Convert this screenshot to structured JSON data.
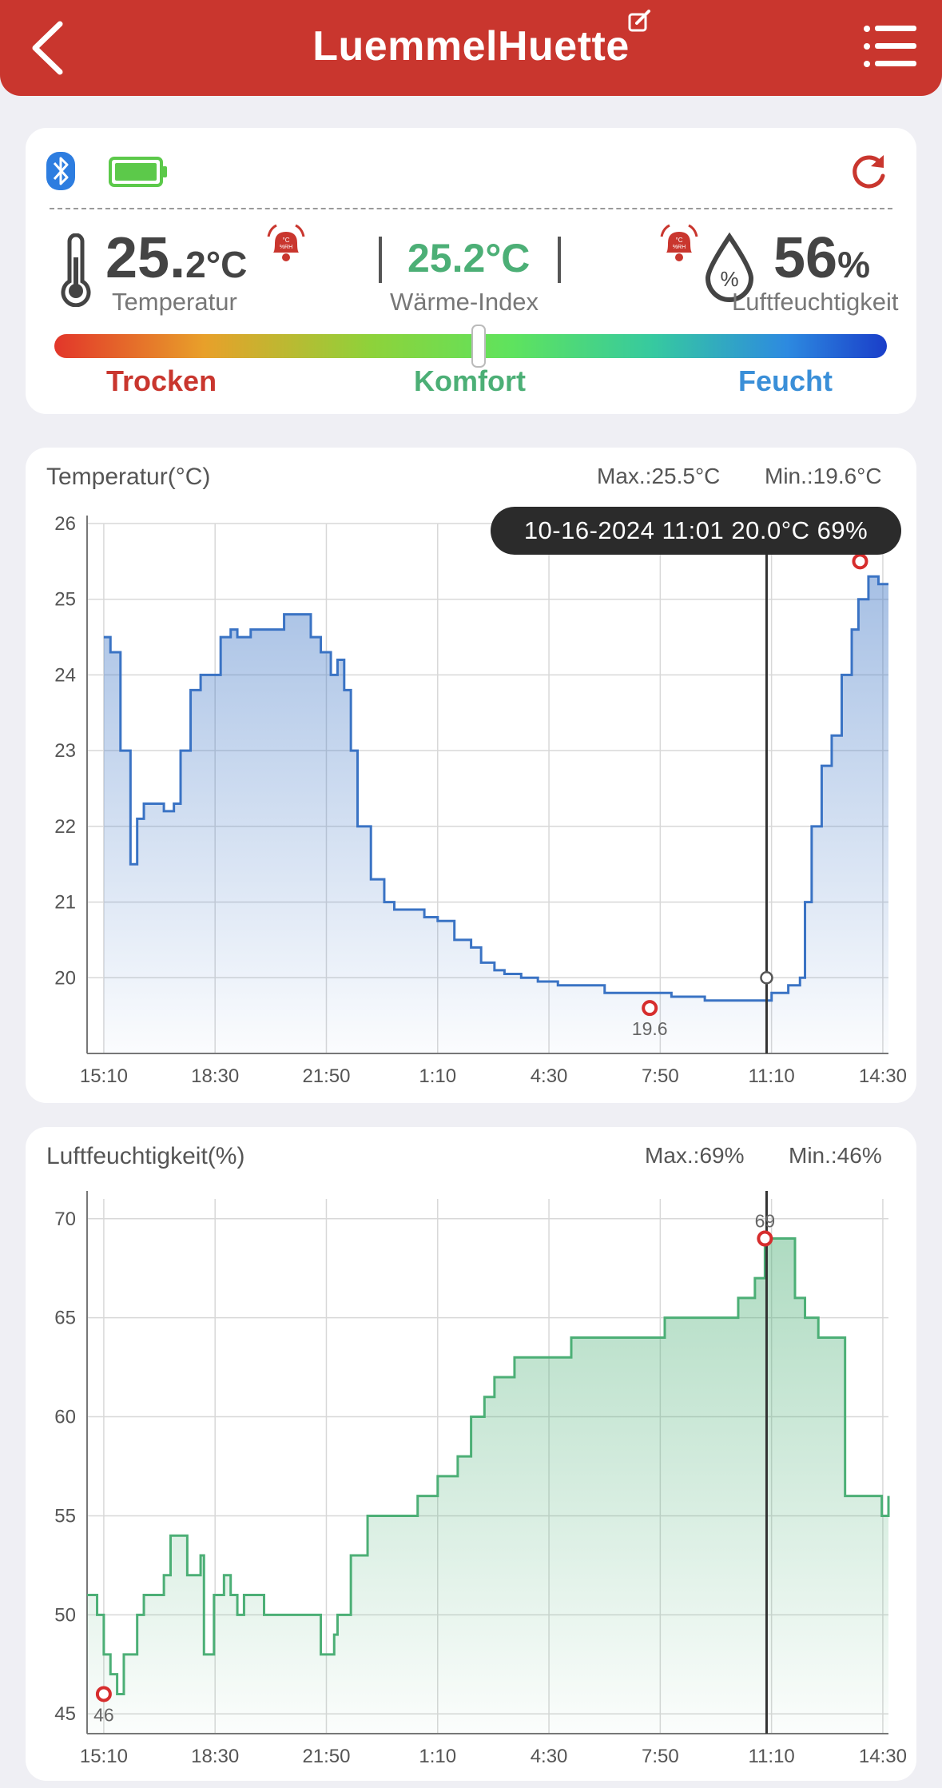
{
  "header": {
    "title": "LuemmelHuette",
    "colors": {
      "bar": "#c9362e"
    },
    "icons": {
      "back": "chevron-left-icon",
      "edit": "edit-icon",
      "menu": "list-menu-icon"
    }
  },
  "status": {
    "icons": {
      "bluetooth": "bluetooth-icon",
      "battery": "battery-full-icon",
      "refresh": "refresh-icon",
      "alarm": "alarm-bell-icon",
      "thermometer": "thermometer-icon",
      "humidity": "droplet-percent-icon"
    },
    "temperature": {
      "whole": "25.",
      "decimal": "2",
      "unit": "°C",
      "label": "Temperatur"
    },
    "heat_index": {
      "value": "25.2°C",
      "label": "Wärme-Index"
    },
    "humidity": {
      "value": "56",
      "unit": "%",
      "label": "Luftfeuchtigkeit"
    },
    "alarm_badge": "°C\n%RH",
    "comfort_level": 0.51,
    "zones": {
      "dry": "Trocken",
      "comfort": "Komfort",
      "wet": "Feucht"
    },
    "colors": {
      "dry": "#c9362e",
      "comfort": "#4caf76",
      "wet": "#3a8fd8",
      "battery": "#5cc94a",
      "bluetooth": "#2d7de0"
    }
  },
  "temperature_chart": {
    "title": "Temperatur(°C)",
    "max_label": "Max.:25.5°C",
    "min_label": "Min.:19.6°C",
    "tooltip": "10-16-2024 11:01 20.0°C 69%",
    "min_point_label": "19.6"
  },
  "humidity_chart": {
    "title": "Luftfeuchtigkeit(%)",
    "max_label": "Max.:69%",
    "min_label": "Min.:46%",
    "max_point_label": "69",
    "min_point_label": "46"
  },
  "chart_data": [
    {
      "type": "area",
      "title": "Temperatur(°C)",
      "color": "#3a73c4",
      "ylim": [
        19,
        26
      ],
      "yticks": [
        20,
        21,
        22,
        23,
        24,
        25,
        26
      ],
      "xticks": [
        "15:10",
        "18:30",
        "21:50",
        "1:10",
        "4:30",
        "7:50",
        "11:10",
        "14:30"
      ],
      "x_unit": "hours since 15:10",
      "xlim": [
        -0.5,
        23.5
      ],
      "x": [
        0,
        0.2,
        0.5,
        0.8,
        1.0,
        1.2,
        1.5,
        1.8,
        2.1,
        2.3,
        2.6,
        2.9,
        3.2,
        3.5,
        3.8,
        4.0,
        4.4,
        5.0,
        5.4,
        5.9,
        6.2,
        6.5,
        6.8,
        7.0,
        7.2,
        7.4,
        7.6,
        8.0,
        8.4,
        8.7,
        9.0,
        9.6,
        10.0,
        10.5,
        11.0,
        11.3,
        11.7,
        12.0,
        12.5,
        13.0,
        13.6,
        14.4,
        15.0,
        16.0,
        17.0,
        18.0,
        19.0,
        20.0,
        20.5,
        20.85,
        21.0,
        21.2,
        21.5,
        21.8,
        22.1,
        22.4,
        22.6,
        22.9,
        23.2,
        23.5
      ],
      "values": [
        24.5,
        24.3,
        23.0,
        21.5,
        22.1,
        22.3,
        22.3,
        22.2,
        22.3,
        23.0,
        23.8,
        24.0,
        24.0,
        24.5,
        24.6,
        24.5,
        24.6,
        24.6,
        24.8,
        24.8,
        24.5,
        24.3,
        24.0,
        24.2,
        23.8,
        23.0,
        22.0,
        21.3,
        21.0,
        20.9,
        20.9,
        20.8,
        20.75,
        20.5,
        20.4,
        20.2,
        20.1,
        20.05,
        20.0,
        19.95,
        19.9,
        19.9,
        19.8,
        19.8,
        19.75,
        19.7,
        19.7,
        19.8,
        19.9,
        20.0,
        21.0,
        22.0,
        22.8,
        23.2,
        24.0,
        24.6,
        25.0,
        25.3,
        25.2,
        25.2
      ],
      "max": {
        "x": 22.65,
        "value": 25.5
      },
      "min": {
        "x": 16.35,
        "value": 19.6
      },
      "cursor_x": 19.85
    },
    {
      "type": "area",
      "title": "Luftfeuchtigkeit(%)",
      "color": "#4caf76",
      "ylim": [
        44,
        71
      ],
      "yticks": [
        45,
        50,
        55,
        60,
        65,
        70
      ],
      "xticks": [
        "15:10",
        "18:30",
        "21:50",
        "1:10",
        "4:30",
        "7:50",
        "11:10",
        "14:30"
      ],
      "x_unit": "hours since 15:10",
      "xlim": [
        -0.5,
        23.5
      ],
      "x": [
        -0.5,
        -0.2,
        0.0,
        0.2,
        0.4,
        0.6,
        0.8,
        1.0,
        1.2,
        1.4,
        1.6,
        1.8,
        2.0,
        2.5,
        2.9,
        3.0,
        3.3,
        3.6,
        3.8,
        4.0,
        4.2,
        4.5,
        4.8,
        5.0,
        5.5,
        6.0,
        6.5,
        6.9,
        7.0,
        7.4,
        7.6,
        7.9,
        8.0,
        8.3,
        8.6,
        8.9,
        9.4,
        10.0,
        10.6,
        11.0,
        11.4,
        11.7,
        12.0,
        12.3,
        12.6,
        12.9,
        13.4,
        14.0,
        14.8,
        15.2,
        16.0,
        16.8,
        17.5,
        18.2,
        18.6,
        19.0,
        19.3,
        19.5,
        19.8,
        20.2,
        20.7,
        21.0,
        21.4,
        21.8,
        22.2,
        22.6,
        23.0,
        23.3,
        23.5
      ],
      "values": [
        51,
        50,
        48,
        47,
        46,
        48,
        48,
        50,
        51,
        51,
        51,
        52,
        54,
        52,
        53,
        48,
        51,
        52,
        51,
        50,
        51,
        51,
        50,
        50,
        50,
        50,
        48,
        49,
        50,
        53,
        53,
        55,
        55,
        55,
        55,
        55,
        56,
        57,
        58,
        60,
        61,
        62,
        62,
        63,
        63,
        63,
        63,
        64,
        64,
        64,
        64,
        65,
        65,
        65,
        65,
        66,
        66,
        67,
        69,
        69,
        66,
        65,
        64,
        64,
        56,
        56,
        56,
        55,
        56
      ],
      "max": {
        "x": 19.8,
        "value": 69
      },
      "min": {
        "x": 0.0,
        "value": 46
      },
      "cursor_x": 19.85
    }
  ]
}
